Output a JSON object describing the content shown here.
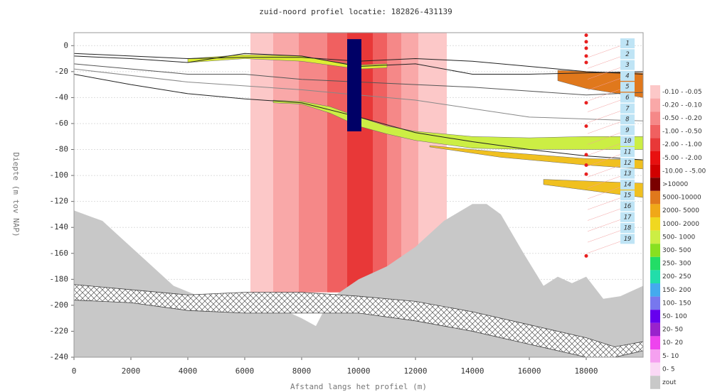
{
  "chart_data": {
    "type": "profile",
    "title": "zuid-noord profiel locatie: 182826-431139",
    "xlabel": "Afstand langs het profiel (m)",
    "ylabel": "Diepte (m tov NAP)",
    "xlim": [
      0,
      20000
    ],
    "ylim": [
      -240,
      10
    ],
    "xticks": [
      0,
      2000,
      4000,
      6000,
      8000,
      10000,
      12000,
      14000,
      16000,
      18000
    ],
    "yticks": [
      0,
      -20,
      -40,
      -60,
      -80,
      -100,
      -120,
      -140,
      -160,
      -180,
      -200,
      -220,
      -240
    ],
    "grid": true,
    "salt": {
      "color": "#c8c8c8",
      "x": [
        0,
        1000,
        1500,
        2500,
        3500,
        4500,
        6000,
        7000,
        8000,
        8500,
        9000,
        10000,
        11000,
        12000,
        13000,
        14000,
        14500,
        15000,
        15800,
        16500,
        17000,
        17500,
        18000,
        18600,
        19200,
        20000
      ],
      "y": [
        -127,
        -135,
        -145,
        -165,
        -185,
        -194,
        -198,
        -200,
        -210,
        -216,
        -195,
        -180,
        -170,
        -155,
        -135,
        -122,
        -122,
        -130,
        -160,
        -185,
        -178,
        -183,
        -178,
        -195,
        -193,
        -185
      ]
    },
    "hatched": {
      "x": [
        0,
        2000,
        4000,
        6000,
        8000,
        10000,
        12000,
        14000,
        16000,
        18000,
        19000,
        20000
      ],
      "top": [
        -184,
        -188,
        -192,
        -190,
        -190,
        -193,
        -197,
        -205,
        -215,
        -225,
        -232,
        -228
      ],
      "bottom": [
        -196,
        -198,
        -204,
        -206,
        -206,
        -206,
        -212,
        -220,
        -230,
        -240,
        -240,
        -235
      ]
    },
    "bands": [
      {
        "x": [
          6200,
          13100
        ],
        "y": [
          -190,
          10
        ],
        "color": "#fcc8c8"
      },
      {
        "x": [
          7000,
          12100
        ],
        "y": [
          -190,
          10
        ],
        "color": "#f9a8a8"
      },
      {
        "x": [
          7900,
          11500
        ],
        "y": [
          -190,
          10
        ],
        "color": "#f58888"
      },
      {
        "x": [
          8900,
          11000
        ],
        "y": [
          -190,
          10
        ],
        "color": "#f06060"
      },
      {
        "x": [
          9600,
          10500
        ],
        "y": [
          -190,
          10
        ],
        "color": "#e83838"
      }
    ],
    "layers": [
      {
        "color": "#ddee33",
        "x": [
          4000,
          6000,
          8000,
          9000,
          10000,
          11000
        ],
        "top": [
          -10,
          -7,
          -8,
          -12,
          -15,
          -14
        ],
        "bottom": [
          -13,
          -10,
          -12,
          -15,
          -18,
          -17
        ]
      },
      {
        "color": "#ccee44",
        "x": [
          7000,
          8000,
          9000,
          10000,
          11000,
          12000,
          14000,
          16000,
          18000,
          20000
        ],
        "top": [
          -42,
          -43,
          -47,
          -55,
          -62,
          -66,
          -70,
          -71,
          -70,
          -70
        ],
        "bottom": [
          -44,
          -45,
          -52,
          -62,
          -68,
          -73,
          -79,
          -80,
          -80,
          -80
        ]
      },
      {
        "color": "#e0781c",
        "x": [
          17000,
          18000,
          20000
        ],
        "top": [
          -19,
          -20,
          -21
        ],
        "bottom": [
          -27,
          -33,
          -40
        ]
      },
      {
        "color": "#f0c020",
        "x": [
          12500,
          15000,
          18000,
          20000
        ],
        "top": [
          -77,
          -82,
          -87,
          -88
        ],
        "bottom": [
          -78,
          -86,
          -92,
          -95
        ]
      },
      {
        "color": "#f0c020",
        "x": [
          16500,
          20000
        ],
        "top": [
          -103,
          -106
        ],
        "bottom": [
          -107,
          -117
        ]
      }
    ],
    "well": {
      "x": [
        9600,
        10100
      ],
      "y": [
        -66,
        5
      ],
      "color": "#000066"
    },
    "lines": [
      {
        "color": "#222222",
        "x": [
          0,
          2000,
          4000,
          6000,
          8000,
          10000,
          12000,
          14000,
          16000,
          18000,
          20000
        ],
        "y": [
          -6,
          -8,
          -10,
          -9,
          -9,
          -12,
          -10,
          -12,
          -16,
          -20,
          -22
        ]
      },
      {
        "color": "#222222",
        "x": [
          0,
          2000,
          4000,
          6000,
          8000,
          10000,
          12000,
          14000,
          16000,
          18000,
          20000
        ],
        "y": [
          -8,
          -10,
          -13,
          -6,
          -8,
          -16,
          -14,
          -22,
          -22,
          -21,
          -20
        ]
      },
      {
        "color": "#555555",
        "x": [
          0,
          2000,
          4000,
          6000,
          8000,
          10000,
          12000,
          14000,
          16000,
          18000,
          20000
        ],
        "y": [
          -14,
          -18,
          -22,
          -22,
          -26,
          -28,
          -30,
          -32,
          -35,
          -38,
          -36
        ]
      },
      {
        "color": "#888888",
        "x": [
          0,
          4000,
          8000,
          12000,
          16000,
          20000
        ],
        "y": [
          -18,
          -28,
          -34,
          -42,
          -55,
          -58
        ]
      },
      {
        "color": "#222222",
        "x": [
          0,
          2000,
          4000,
          6000,
          8000,
          10000,
          12000,
          14000,
          16000,
          18000,
          20000
        ],
        "y": [
          -22,
          -30,
          -37,
          -41,
          -44,
          -55,
          -67,
          -74,
          -80,
          -85,
          -88
        ]
      }
    ],
    "points": {
      "color": "#e82020",
      "x": [
        18000,
        18000,
        18000,
        18000,
        18000,
        18000,
        18000,
        18000,
        18000,
        18000,
        18000
      ],
      "y": [
        8,
        3,
        -2,
        -8,
        -13,
        -44,
        -62,
        -84,
        -92,
        -99,
        -162
      ]
    },
    "layer_labels": [
      "1",
      "2",
      "3",
      "4",
      "5",
      "6",
      "7",
      "8",
      "9",
      "10",
      "11",
      "12",
      "13",
      "14",
      "15",
      "16",
      "17",
      "18",
      "19"
    ],
    "legend": [
      {
        "label": "-0.10 - -0.05",
        "color": "#fcc8c8"
      },
      {
        "label": "-0.20 - -0.10",
        "color": "#f9a8a8"
      },
      {
        "label": "-0.50 - -0.20",
        "color": "#f58888"
      },
      {
        "label": "-1.00 - -0.50",
        "color": "#f06060"
      },
      {
        "label": "-2.00 - -1.00",
        "color": "#e83838"
      },
      {
        "label": "-5.00 - -2.00",
        "color": "#e81010"
      },
      {
        "label": "-10.00 - -5.00",
        "color": "#d00000"
      },
      {
        "label": ">10000",
        "color": "#7a0000"
      },
      {
        "label": "5000-10000",
        "color": "#e0781c"
      },
      {
        "label": "2000- 5000",
        "color": "#f0a818"
      },
      {
        "label": "1000- 2000",
        "color": "#f0d820"
      },
      {
        "label": "500- 1000",
        "color": "#ccee44"
      },
      {
        "label": "300- 500",
        "color": "#88e020"
      },
      {
        "label": "250- 300",
        "color": "#22dd66"
      },
      {
        "label": "200- 250",
        "color": "#22ddaa"
      },
      {
        "label": "150- 200",
        "color": "#44aaee"
      },
      {
        "label": "100- 150",
        "color": "#7777ee"
      },
      {
        "label": "50- 100",
        "color": "#6600ee"
      },
      {
        "label": "20- 50",
        "color": "#9922cc"
      },
      {
        "label": "10- 20",
        "color": "#ee44ee"
      },
      {
        "label": "5- 10",
        "color": "#f5a0f0"
      },
      {
        "label": "0- 5",
        "color": "#fad8f5"
      },
      {
        "label": "zout",
        "color": "#c8c8c8"
      }
    ]
  }
}
